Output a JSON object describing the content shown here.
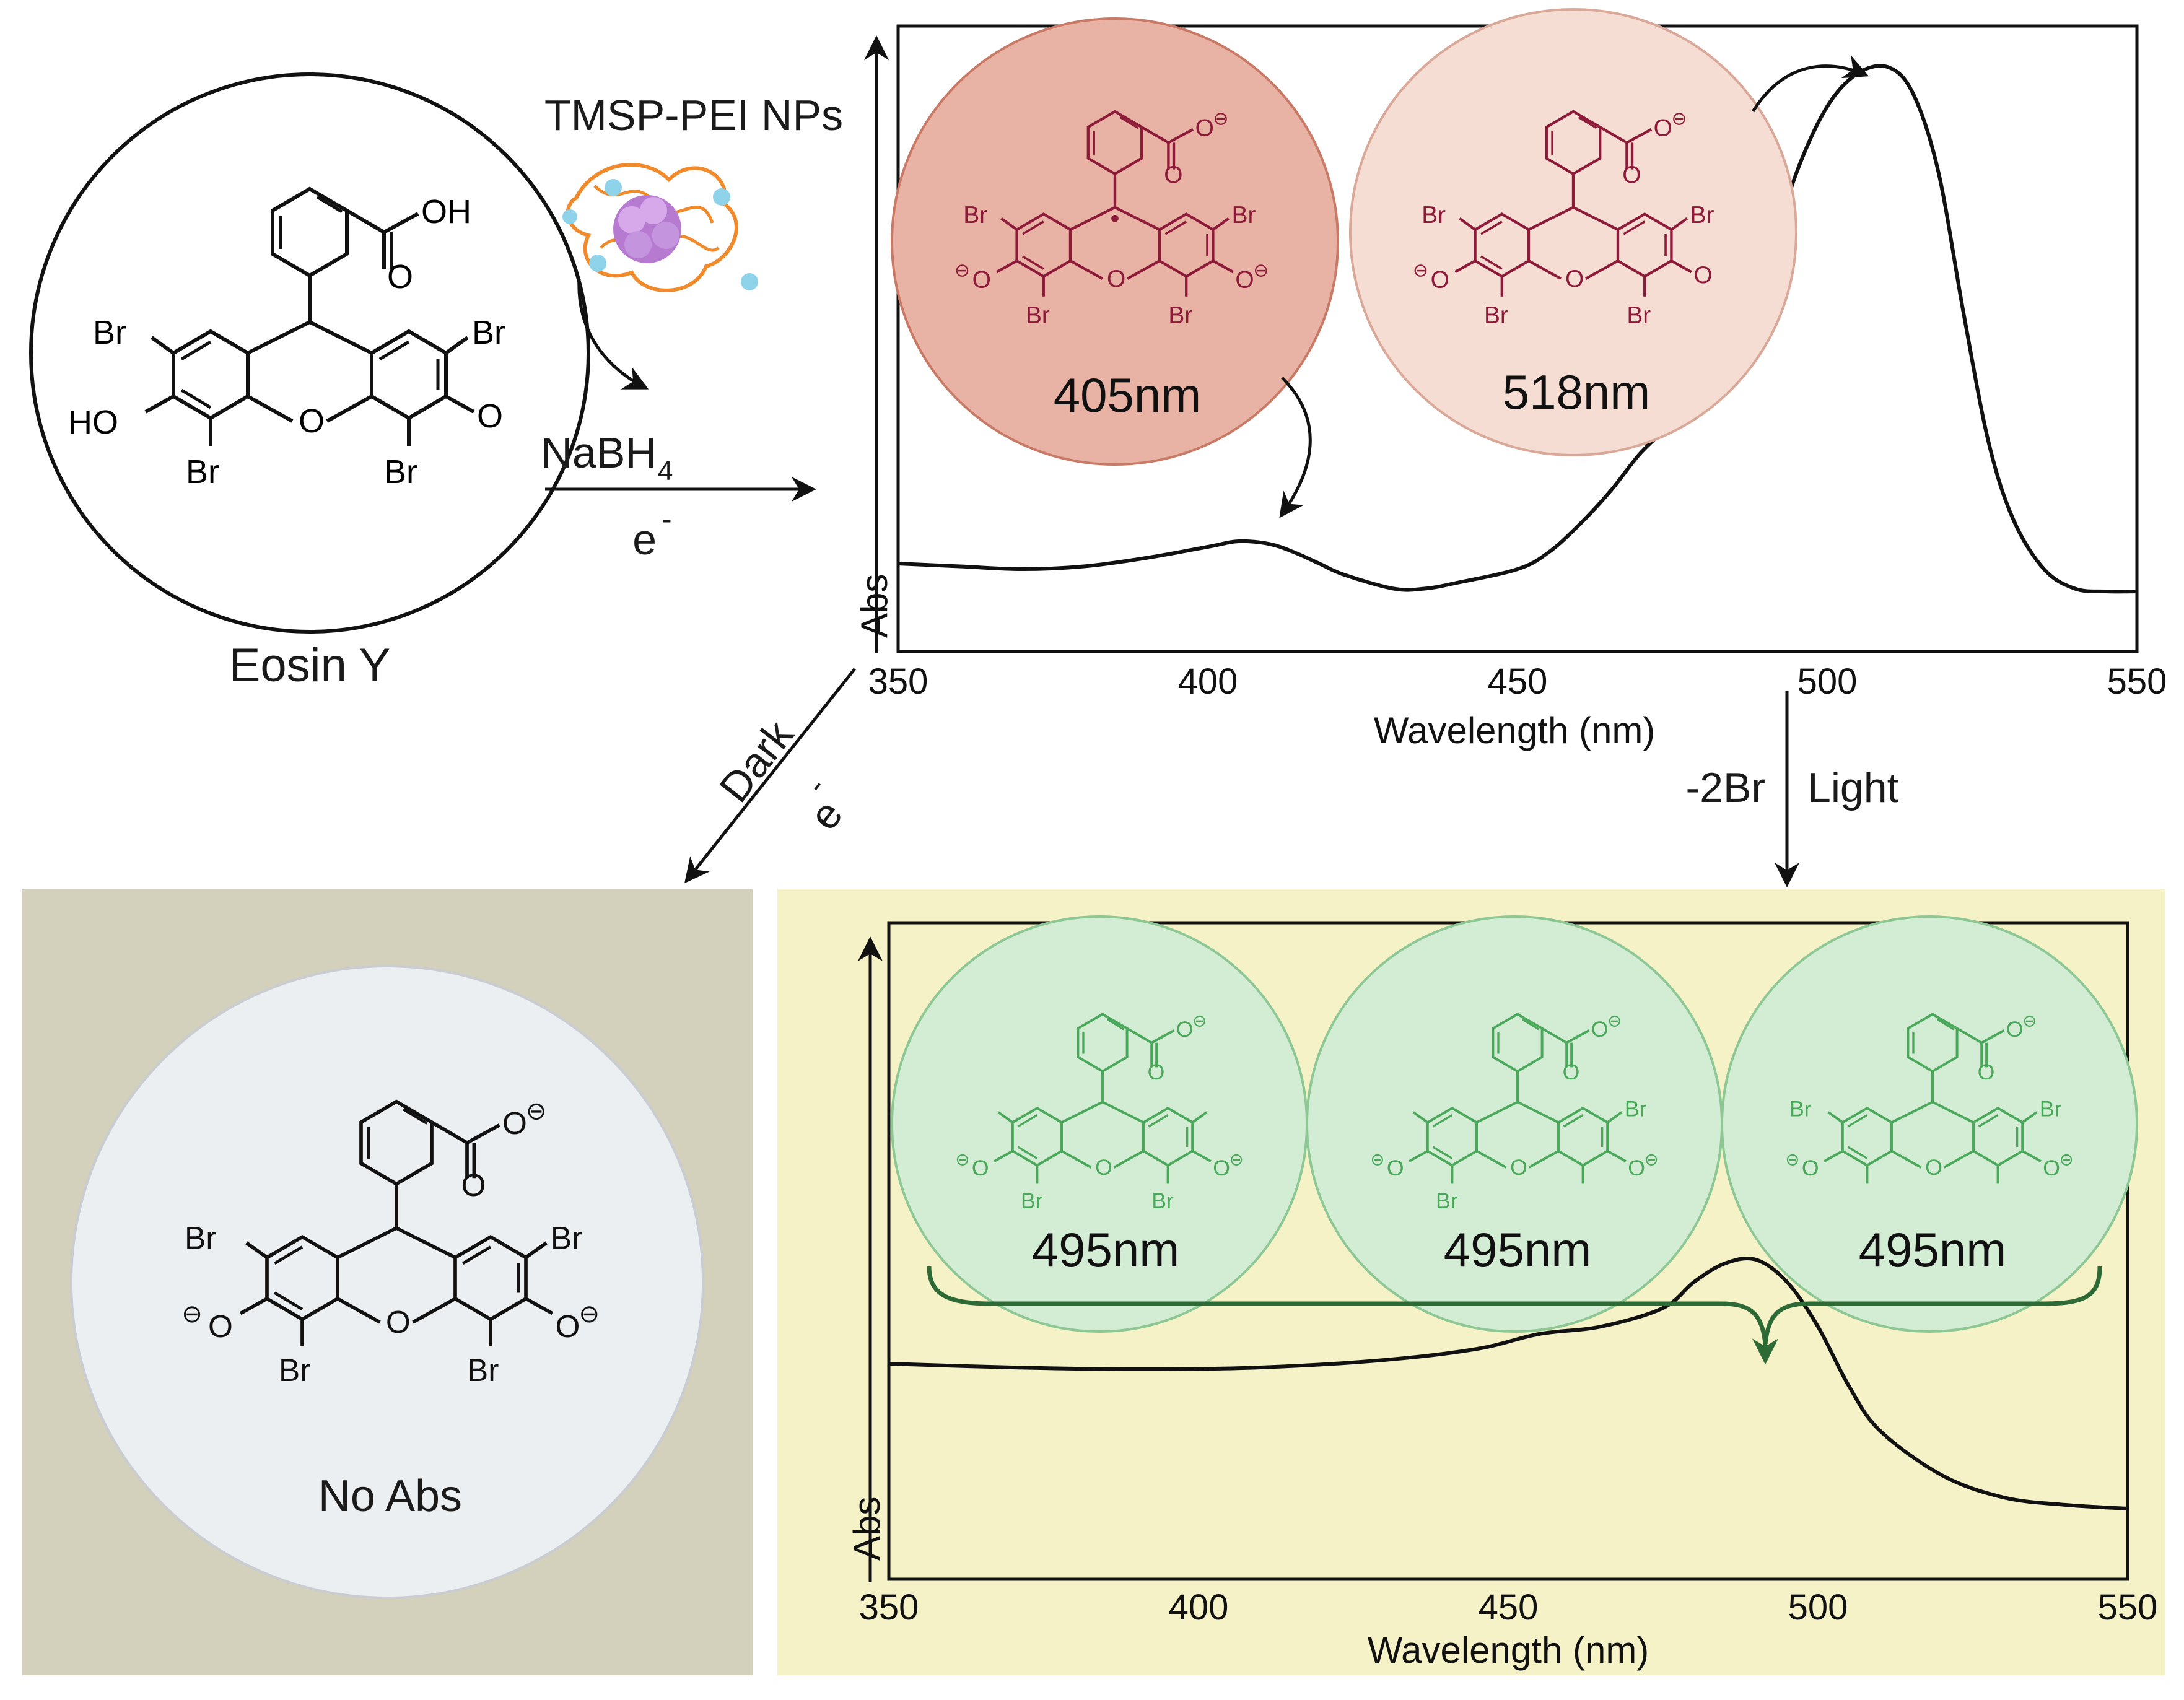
{
  "reactant": {
    "name": "Eosin Y"
  },
  "reagents": {
    "nanoparticle": "TMSP-PEI NPs",
    "reductant": "NaBH",
    "reductant_sub": "4",
    "electron": "e",
    "electron_sup": "-"
  },
  "atoms": {
    "br": "Br",
    "ho": "HO",
    "o": "O",
    "oh": "OH",
    "neg": "⊖"
  },
  "dark_path": {
    "label": "Dark",
    "electron": "e",
    "electron_sup": "-",
    "result": "No Abs"
  },
  "light_path": {
    "label": "Light",
    "loss": "-2Br"
  },
  "top_spectrum": {
    "species_labels": [
      "405nm",
      "518nm"
    ]
  },
  "bottom_spectrum": {
    "species_labels": [
      "495nm",
      "495nm",
      "495nm"
    ]
  },
  "colors": {
    "ink": "#111111",
    "structure_red": "#8e1a3a",
    "circle_405_fill": "#e8b3a4",
    "circle_518_fill": "#f5ddd3",
    "structure_green": "#4aa85a",
    "circle_green_fill": "#d3ecd4",
    "green_bracket": "#2d6a35",
    "dark_panel": "#d3d0bc",
    "light_panel": "#f6f2c8",
    "gray_circle": "#eceff2"
  },
  "chart_data": [
    {
      "type": "line",
      "xlabel": "Wavelength (nm)",
      "ylabel": "Abs",
      "xlim": [
        350,
        550
      ],
      "xticks": [
        350,
        400,
        450,
        500,
        550
      ],
      "series": [
        {
          "x": [
            350,
            360,
            370,
            380,
            390,
            400,
            405,
            410,
            414,
            418,
            422,
            430,
            435,
            440,
            450,
            455,
            460,
            465,
            470,
            475,
            480,
            485,
            488,
            491,
            495,
            500,
            505,
            510,
            514,
            518,
            522,
            526,
            530,
            535,
            540,
            545,
            550
          ],
          "y": [
            0.1,
            0.095,
            0.09,
            0.095,
            0.11,
            0.13,
            0.14,
            0.135,
            0.12,
            0.1,
            0.08,
            0.055,
            0.055,
            0.065,
            0.09,
            0.12,
            0.17,
            0.23,
            0.3,
            0.35,
            0.39,
            0.42,
            0.5,
            0.65,
            0.8,
            0.92,
            0.98,
            0.99,
            0.94,
            0.8,
            0.55,
            0.32,
            0.18,
            0.09,
            0.055,
            0.05,
            0.05
          ]
        }
      ]
    },
    {
      "type": "line",
      "xlabel": "Wavelength (nm)",
      "ylabel": "Abs",
      "xlim": [
        350,
        550
      ],
      "xticks": [
        350,
        400,
        450,
        500,
        550
      ],
      "series": [
        {
          "x": [
            350,
            370,
            390,
            410,
            430,
            445,
            455,
            465,
            475,
            480,
            485,
            490,
            495,
            500,
            505,
            510,
            520,
            530,
            540,
            550
          ],
          "y": [
            0.58,
            0.57,
            0.565,
            0.57,
            0.59,
            0.62,
            0.66,
            0.68,
            0.73,
            0.8,
            0.85,
            0.86,
            0.8,
            0.68,
            0.52,
            0.4,
            0.28,
            0.22,
            0.2,
            0.19
          ]
        }
      ]
    }
  ]
}
